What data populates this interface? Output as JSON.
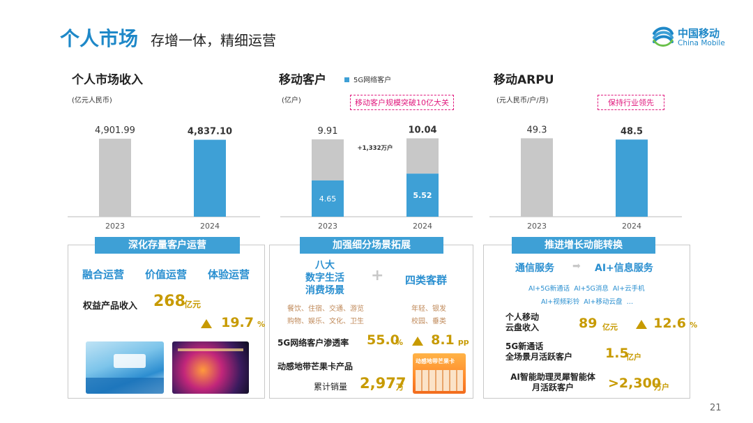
{
  "header": {
    "title": "个人市场",
    "subtitle": "存增一体，精细运营",
    "logo_cn": "中国移动",
    "logo_en": "China Mobile"
  },
  "page_number": "21",
  "colors": {
    "accent_blue": "#3ea0d6",
    "bar_gray": "#c8c8c8",
    "gold": "#c79a00",
    "callout_pink": "#e0197d"
  },
  "chart_data": [
    {
      "type": "bar",
      "title": "个人市场收入",
      "unit": "(亿元人民币)",
      "categories": [
        "2023",
        "2024"
      ],
      "values": [
        4901.99,
        4837.1
      ],
      "value_labels": [
        "4,901.99",
        "4,837.10"
      ],
      "ylim": [
        0,
        5300
      ]
    },
    {
      "type": "bar",
      "title": "移动客户",
      "unit": "(亿户)",
      "legend": "5G网络客户",
      "callout": "移动客户规模突破10亿大关",
      "categories": [
        "2023",
        "2024"
      ],
      "series": [
        {
          "name": "5G网络客户",
          "values": [
            4.65,
            5.52
          ],
          "labels": [
            "4.65",
            "5.52"
          ]
        },
        {
          "values": [
            5.26,
            4.52
          ]
        }
      ],
      "totals": [
        9.91,
        10.04
      ],
      "total_labels": [
        "9.91",
        "10.04"
      ],
      "annotation": "+1,332万户",
      "ylim": [
        0,
        10.8
      ]
    },
    {
      "type": "bar",
      "title": "移动ARPU",
      "unit": "(元人民币/户/月)",
      "callout": "保持行业领先",
      "categories": [
        "2023",
        "2024"
      ],
      "values": [
        49.3,
        48.5
      ],
      "value_labels": [
        "49.3",
        "48.5"
      ],
      "ylim": [
        0,
        53
      ]
    }
  ],
  "panel1": {
    "banner": "深化存量客户运营",
    "items": [
      "融合运营",
      "价值运营",
      "体验运营"
    ],
    "metric_label": "权益产品收入",
    "metric_value": "268",
    "metric_unit": "亿元",
    "growth_value": "19.7",
    "growth_unit": "%"
  },
  "panel2": {
    "banner": "加强细分场景拓展",
    "left_title": "八大\n数字生活\n消费场景",
    "plus": "+",
    "right_title": "四类客群",
    "left_tags_1": "餐饮、住宿、交通、游览",
    "left_tags_2": "购物、娱乐、文化、卫生",
    "right_tags_1": "年轻、银发",
    "right_tags_2": "校园、垂类",
    "pen_label": "5G网络客户渗透率",
    "pen_value": "55.0",
    "pen_unit": "%",
    "pp_value": "8.1",
    "pp_unit": "pp",
    "card_label": "动感地带芒果卡产品",
    "sales_label": "累计销量",
    "sales_value": "2,977",
    "sales_unit": "万",
    "img_text": "动感地带芒果卡"
  },
  "panel3": {
    "banner": "推进增长动能转换",
    "from": "通信服务",
    "arrow": "➡",
    "to": "AI+信息服务",
    "tags_1": "AI+5G新通话  AI+5G消息  AI+云手机",
    "tags_2": "AI+视频彩铃  AI+移动云盘  …",
    "m1_label": "个人移动\n云盘收入",
    "m1_value": "89",
    "m1_unit": "亿元",
    "m1_growth": "12.6",
    "m1_growth_unit": "%",
    "m2_label": "5G新通话\n全场景月活跃客户",
    "m2_value": "1.5",
    "m2_unit": "亿户",
    "m3_label": "AI智能助理灵犀智能体\n月活跃客户",
    "m3_value": ">2,300",
    "m3_unit": "万户"
  }
}
